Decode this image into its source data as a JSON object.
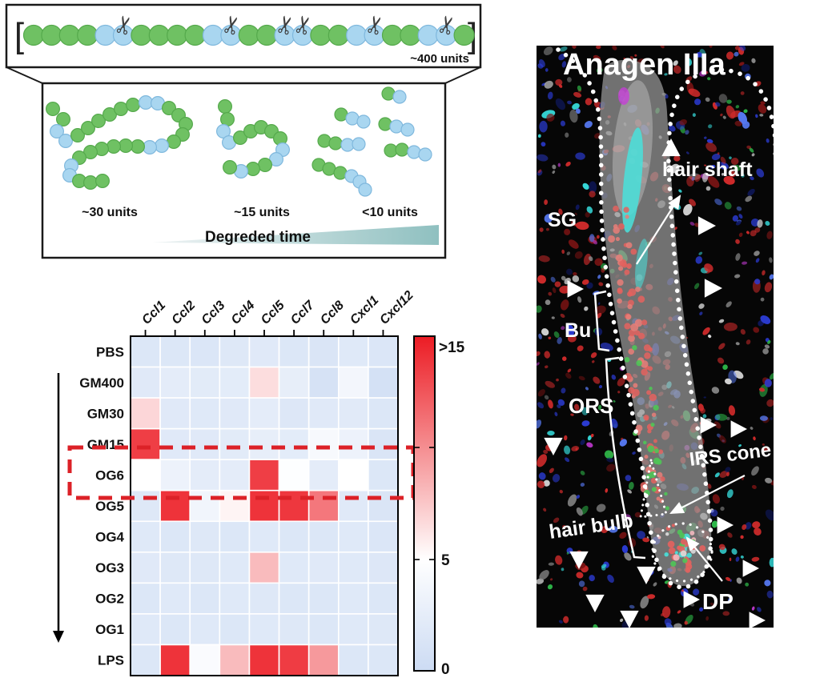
{
  "panel_degradation": {
    "bracket_left": "[",
    "bracket_right": "]",
    "chain_tokens": "GGGGBB*GGGGBB*GGB*B*GGBB*GGBB*G",
    "chain_label": "~400 units",
    "fragment_labels": [
      "~30 units",
      "~15 units",
      "<10 units"
    ],
    "time_label": "Degreded time",
    "bead_green": "#6fc163",
    "bead_blue": "#a9d6f0",
    "wedge_color": "#8fc0c0",
    "fragments": {
      "c30": [
        [
          66,
          136,
          "g"
        ],
        [
          79,
          149,
          "g"
        ],
        [
          71,
          164,
          "b"
        ],
        [
          82,
          176,
          "b"
        ],
        [
          97,
          169,
          "g"
        ],
        [
          110,
          160,
          "g"
        ],
        [
          123,
          151,
          "g"
        ],
        [
          137,
          143,
          "g"
        ],
        [
          151,
          136,
          "g"
        ],
        [
          166,
          131,
          "g"
        ],
        [
          182,
          128,
          "b"
        ],
        [
          197,
          129,
          "b"
        ],
        [
          211,
          135,
          "g"
        ],
        [
          223,
          144,
          "g"
        ],
        [
          232,
          155,
          "g"
        ],
        [
          228,
          168,
          "g"
        ],
        [
          217,
          177,
          "g"
        ],
        [
          202,
          182,
          "b"
        ],
        [
          187,
          184,
          "b"
        ],
        [
          172,
          183,
          "g"
        ],
        [
          157,
          182,
          "g"
        ],
        [
          142,
          183,
          "g"
        ],
        [
          127,
          186,
          "g"
        ],
        [
          113,
          190,
          "g"
        ],
        [
          99,
          197,
          "g"
        ],
        [
          89,
          207,
          "b"
        ],
        [
          87,
          219,
          "b"
        ],
        [
          99,
          226,
          "g"
        ],
        [
          113,
          228,
          "g"
        ],
        [
          128,
          226,
          "g"
        ]
      ],
      "c15": [
        [
          281,
          133,
          "g"
        ],
        [
          284,
          149,
          "g"
        ],
        [
          279,
          164,
          "b"
        ],
        [
          286,
          178,
          "b"
        ],
        [
          300,
          172,
          "g"
        ],
        [
          313,
          164,
          "g"
        ],
        [
          326,
          159,
          "g"
        ],
        [
          339,
          164,
          "g"
        ],
        [
          350,
          173,
          "g"
        ],
        [
          353,
          187,
          "b"
        ],
        [
          345,
          199,
          "b"
        ],
        [
          331,
          206,
          "g"
        ],
        [
          316,
          211,
          "g"
        ],
        [
          301,
          214,
          "b"
        ],
        [
          287,
          209,
          "g"
        ]
      ],
      "small": [
        [
          [
            485,
            117,
            "g"
          ],
          [
            499,
            121,
            "b"
          ]
        ],
        [
          [
            426,
            143,
            "g"
          ],
          [
            440,
            148,
            "b"
          ],
          [
            454,
            152,
            "b"
          ]
        ],
        [
          [
            481,
            155,
            "g"
          ],
          [
            495,
            158,
            "b"
          ],
          [
            509,
            162,
            "b"
          ]
        ],
        [
          [
            405,
            176,
            "g"
          ],
          [
            419,
            179,
            "g"
          ],
          [
            434,
            181,
            "b"
          ],
          [
            448,
            180,
            "b"
          ]
        ],
        [
          [
            488,
            188,
            "g"
          ],
          [
            502,
            187,
            "g"
          ],
          [
            517,
            190,
            "b"
          ],
          [
            531,
            193,
            "b"
          ]
        ],
        [
          [
            398,
            206,
            "g"
          ],
          [
            411,
            211,
            "g"
          ],
          [
            425,
            216,
            "g"
          ],
          [
            439,
            220,
            "b"
          ]
        ],
        [
          [
            449,
            227,
            "b"
          ],
          [
            456,
            237,
            "b"
          ]
        ]
      ]
    }
  },
  "chart_data": {
    "type": "heatmap",
    "columns": [
      "Ccl1",
      "Ccl2",
      "Ccl3",
      "Ccl4",
      "Ccl5",
      "Ccl7",
      "Ccl8",
      "Cxcl1",
      "Cxcl12"
    ],
    "rows": [
      "PBS",
      "GM400",
      "GM30",
      "GM15",
      "OG6",
      "OG5",
      "OG4",
      "OG3",
      "OG2",
      "OG1",
      "LPS"
    ],
    "values": [
      [
        1.6,
        1.6,
        1.5,
        1.8,
        2.0,
        1.6,
        1.4,
        1.9,
        1.5
      ],
      [
        2.0,
        2.4,
        2.2,
        2.3,
        6.5,
        2.6,
        1.0,
        3.8,
        0.8
      ],
      [
        6.8,
        2.0,
        1.9,
        2.0,
        2.4,
        1.7,
        2.0,
        2.1,
        1.6
      ],
      [
        13.5,
        2.0,
        2.0,
        2.2,
        2.6,
        2.3,
        4.2,
        3.2,
        1.4
      ],
      [
        5.0,
        3.2,
        2.4,
        2.4,
        13.5,
        4.8,
        2.4,
        5.0,
        1.6
      ],
      [
        1.8,
        14.0,
        3.6,
        5.5,
        14.0,
        13.8,
        11.0,
        2.0,
        1.4
      ],
      [
        1.9,
        1.6,
        1.8,
        1.6,
        1.9,
        1.6,
        1.6,
        1.9,
        1.5
      ],
      [
        2.0,
        1.8,
        1.8,
        1.9,
        8.0,
        1.9,
        2.0,
        1.9,
        1.7
      ],
      [
        1.6,
        1.9,
        1.6,
        1.9,
        1.8,
        1.6,
        1.6,
        1.9,
        1.6
      ],
      [
        1.9,
        1.6,
        1.9,
        1.6,
        1.9,
        1.8,
        1.6,
        1.9,
        1.8
      ],
      [
        1.6,
        14.0,
        4.5,
        8.0,
        14.0,
        13.6,
        9.5,
        1.6,
        1.6
      ]
    ],
    "value_range": [
      0,
      15
    ],
    "colorbar": {
      "labels": {
        "top": ">15",
        "mid": "5",
        "bottom": "0"
      },
      "min": 0,
      "mid": 5,
      "max": 15,
      "color_low": "#ccdbf3",
      "color_mid": "#ffffff",
      "color_high": "#ec1c24",
      "position": "right"
    },
    "highlight": {
      "row": "OG6",
      "color": "#dc2127"
    },
    "grid": true
  },
  "micrograph": {
    "title": "Anagen IIIa",
    "labels": {
      "hair_shaft": "hair shaft",
      "sg": "SG",
      "bu": "Bu",
      "ors": "ORS",
      "irs_cone": "IRS cone",
      "hair_bulb": "hair bulb",
      "dp": "DP"
    },
    "triangles": [
      [
        838,
        186,
        "up",
        13
      ],
      [
        881,
        282,
        "right",
        13
      ],
      [
        717,
        361,
        "right",
        12
      ],
      [
        889,
        360,
        "right",
        13
      ],
      [
        883,
        531,
        "right",
        12
      ],
      [
        921,
        536,
        "right",
        12
      ],
      [
        691,
        556,
        "down",
        13
      ],
      [
        904,
        656,
        "right",
        12
      ],
      [
        723,
        698,
        "down",
        13
      ],
      [
        807,
        717,
        "down",
        13
      ],
      [
        743,
        752,
        "down",
        13
      ],
      [
        786,
        772,
        "down",
        13
      ],
      [
        862,
        749,
        "right",
        12
      ],
      [
        936,
        710,
        "right",
        12
      ],
      [
        944,
        775,
        "right",
        12
      ]
    ],
    "background": "#060606"
  }
}
